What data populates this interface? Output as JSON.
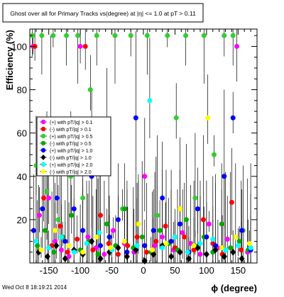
{
  "window": {
    "timestamp": "Wed Oct  8 18:19:21 2014"
  },
  "chart_data": {
    "type": "scatter",
    "title": "Ghost over all for Primary Tracks vs(degree) at |η| <= 1.0 at pT > 0.11",
    "xlabel": "ϕ (degree)",
    "ylabel": "Efficiency (%)",
    "xlim": [
      -180,
      180
    ],
    "ylim": [
      0,
      108
    ],
    "xticks": [
      -150,
      -100,
      -50,
      0,
      50,
      100,
      150
    ],
    "yticks": [
      20,
      40,
      60,
      80,
      100
    ],
    "grid": false,
    "legend_position": "left-middle",
    "series": [
      {
        "name": "(+) with pT/|q| > 0.1",
        "color": "#ff00ff",
        "marker": "circle",
        "x": [
          -175,
          -165,
          -150,
          -140,
          -130,
          -118,
          -100,
          -88,
          -75,
          -62,
          -48,
          -30,
          -15,
          2,
          18,
          30,
          48,
          62,
          75,
          90,
          104,
          118,
          133,
          148,
          165
        ],
        "y": [
          100,
          22,
          30,
          10,
          6,
          3,
          100,
          12,
          7,
          4,
          15,
          9,
          5,
          40,
          8,
          12,
          6,
          14,
          9,
          4,
          18,
          7,
          11,
          100,
          5
        ]
      },
      {
        "name": "(-) with pT/|q| > 0.1",
        "color": "#ff0000",
        "marker": "circle",
        "x": [
          -172,
          -158,
          -145,
          -132,
          -120,
          -105,
          -92,
          -80,
          -68,
          -55,
          -40,
          -25,
          -10,
          5,
          20,
          35,
          50,
          65,
          80,
          95,
          110,
          125,
          140,
          155,
          170
        ],
        "y": [
          100,
          30,
          8,
          17,
          5,
          11,
          100,
          6,
          22,
          9,
          4,
          8,
          12,
          5,
          10,
          17,
          7,
          12,
          6,
          20,
          9,
          4,
          28,
          6,
          7
        ]
      },
      {
        "name": "(+) with pT/|q| > 0.5",
        "color": "#33cc33",
        "marker": "circle",
        "x": [
          -176,
          -170,
          -161,
          -153,
          -143,
          -135,
          -122,
          -115,
          -104,
          -96,
          -84,
          -74,
          -58,
          -45,
          -33,
          -20,
          -8,
          6,
          22,
          38,
          52,
          67,
          82,
          96,
          112,
          128,
          142,
          158
        ],
        "y": [
          105,
          45,
          105,
          33,
          105,
          20,
          105,
          40,
          105,
          30,
          80,
          105,
          60,
          105,
          25,
          105,
          18,
          105,
          22,
          105,
          67,
          105,
          30,
          105,
          50,
          105,
          105,
          15
        ]
      },
      {
        "name": "(-) with pT/|q| > 0.5",
        "color": "#00aa00",
        "marker": "circle",
        "x": [
          -168,
          -156,
          -142,
          -128,
          -114,
          -100,
          -86,
          -72,
          -58,
          -44,
          -30,
          -16,
          -2,
          12,
          26,
          40,
          54,
          68,
          82,
          96,
          110,
          124,
          138,
          152,
          166
        ],
        "y": [
          8,
          15,
          5,
          12,
          22,
          6,
          10,
          4,
          18,
          8,
          25,
          7,
          12,
          5,
          15,
          9,
          6,
          20,
          8,
          12,
          5,
          18,
          7,
          10,
          6
        ]
      },
      {
        "name": "(+) with pT/|q| > 1.0",
        "color": "#0000ff",
        "marker": "circle",
        "x": [
          -174,
          -160,
          -147,
          -137,
          -124,
          -110,
          -96,
          -82,
          -68,
          -54,
          -40,
          -26,
          -12,
          2,
          16,
          30,
          44,
          58,
          72,
          86,
          100,
          114,
          128,
          142,
          156,
          170
        ],
        "y": [
          15,
          25,
          65,
          30,
          10,
          25,
          15,
          40,
          8,
          12,
          20,
          5,
          67,
          8,
          15,
          30,
          10,
          18,
          5,
          25,
          12,
          8,
          40,
          67,
          15,
          6
        ]
      },
      {
        "name": "(-) with pT/|q| > 1.0",
        "color": "#000000",
        "marker": "diamond",
        "x": [
          -166,
          -152,
          -138,
          -124,
          -110,
          -96,
          -82,
          -68,
          -54,
          -40,
          -26,
          -12,
          2,
          16,
          30,
          44,
          58,
          72,
          86,
          100,
          114,
          128,
          142,
          156
        ],
        "y": [
          5,
          3,
          8,
          2,
          6,
          4,
          10,
          2,
          5,
          7,
          3,
          6,
          1,
          4,
          8,
          3,
          5,
          2,
          7,
          4,
          6,
          3,
          5,
          2
        ]
      },
      {
        "name": "(+) with pT/|q| > 2.0",
        "color": "#00ffff",
        "marker": "circle",
        "x": [
          -170,
          -150,
          -130,
          -110,
          -90,
          -70,
          -50,
          -30,
          -10,
          10,
          30,
          50,
          70,
          90,
          110,
          130,
          150,
          170
        ],
        "y": [
          10,
          7,
          12,
          5,
          9,
          14,
          6,
          10,
          8,
          75,
          7,
          12,
          5,
          9,
          11,
          6,
          8,
          7
        ]
      },
      {
        "name": "(-) with pT/|q| > 2.0",
        "color": "#ffff00",
        "marker": "circle",
        "x": [
          -162,
          -140,
          -118,
          -96,
          -74,
          -52,
          -30,
          -8,
          14,
          36,
          58,
          80,
          102,
          124,
          146,
          168
        ],
        "y": [
          6,
          15,
          8,
          5,
          12,
          7,
          10,
          18,
          6,
          9,
          25,
          8,
          67,
          7,
          12,
          9
        ]
      }
    ]
  }
}
